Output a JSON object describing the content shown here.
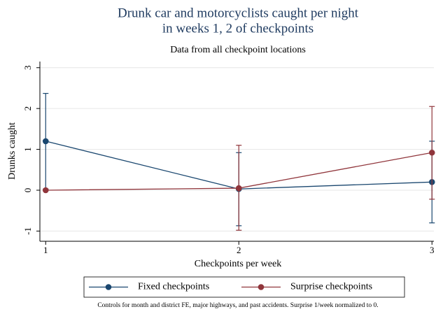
{
  "chart_data": {
    "type": "line",
    "title": [
      "Drunk car and motorcyclists caught per night",
      "in weeks 1, 2 of checkpoints"
    ],
    "subtitle": "Data from all checkpoint locations",
    "x_label": "Checkpoints per week",
    "y_label": "Drunks caught",
    "note": "Controls for month and district FE, major highways, and past accidents. Surprise 1/week normalized to 0.",
    "x": [
      1,
      2,
      3
    ],
    "xlim": [
      0.97,
      3.01
    ],
    "xticks": [
      1,
      2,
      3
    ],
    "ylim": [
      -1.25,
      3.15
    ],
    "yticks": [
      -1,
      0,
      1,
      2,
      3
    ],
    "grid": true,
    "legend": "bottom",
    "series": [
      {
        "name": "Fixed checkpoints",
        "color": "#1a476f",
        "values": [
          1.2,
          0.03,
          0.2
        ],
        "lower": [
          0.03,
          -0.87,
          -0.8
        ],
        "upper": [
          2.37,
          0.92,
          1.2
        ]
      },
      {
        "name": "Surprise checkpoints",
        "color": "#90353b",
        "values": [
          0,
          0.05,
          0.92
        ],
        "lower": [
          null,
          -0.98,
          -0.22
        ],
        "upper": [
          null,
          1.1,
          2.05
        ]
      }
    ]
  }
}
